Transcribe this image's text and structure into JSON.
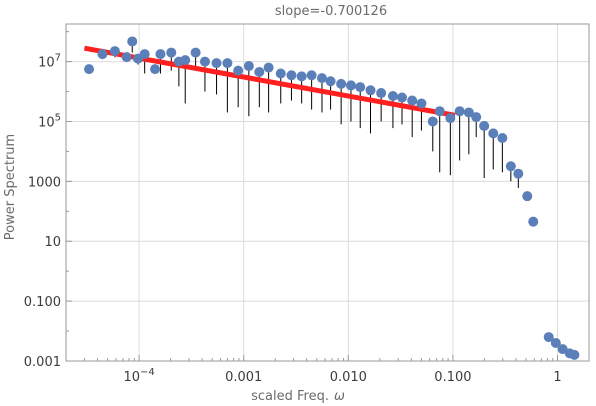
{
  "chart_data": {
    "type": "scatter",
    "title": "slope=-0.700126",
    "xlabel": "scaled Freq.",
    "xlabel_symbol": "ω",
    "ylabel": "Power Spectrum",
    "x_scale": "log",
    "y_scale": "log",
    "xlim": [
      2e-05,
      2.0
    ],
    "ylim": [
      0.001,
      180000000.0
    ],
    "grid": "major, light gray",
    "legend": "none",
    "x_ticks": [
      {
        "value": 0.0001,
        "base": "10",
        "exp": "−4"
      },
      {
        "value": 0.001,
        "label": "0.001"
      },
      {
        "value": 0.01,
        "label": "0.010"
      },
      {
        "value": 0.1,
        "label": "0.100"
      },
      {
        "value": 1,
        "label": "1"
      }
    ],
    "y_ticks": [
      {
        "value": 0.001,
        "label": "0.001"
      },
      {
        "value": 0.1,
        "label": "0.100"
      },
      {
        "value": 10,
        "label": "10"
      },
      {
        "value": 1000,
        "label": "1000"
      },
      {
        "value": 100000,
        "base": "10",
        "exp": "5"
      },
      {
        "value": 10000000,
        "base": "10",
        "exp": "7"
      }
    ],
    "colors": {
      "points": "#5b7fb8",
      "fit": "#ff2020",
      "errorbars": "#000000",
      "grid": "#dcdcdc",
      "frame": "#9a9a9a"
    },
    "series": [
      {
        "points": [
          {
            "x": 3.32e-05,
            "y": 5600000
          },
          {
            "x": 4.46e-05,
            "y": 17800000,
            "err_low": 12000000
          },
          {
            "x": 5.87e-05,
            "y": 22400000,
            "err_low": 14000000
          },
          {
            "x": 7.6e-05,
            "y": 14100000,
            "err_low": 10000000
          },
          {
            "x": 8.6e-05,
            "y": 47000000,
            "err_low": 20000000
          },
          {
            "x": 9.75e-05,
            "y": 12600000,
            "err_low": 8000000
          },
          {
            "x": 0.000113,
            "y": 17800000,
            "err_low": 4000000
          },
          {
            "x": 0.000142,
            "y": 5600000
          },
          {
            "x": 0.00016,
            "y": 17800000,
            "err_low": 4000000
          },
          {
            "x": 0.000203,
            "y": 20000000,
            "err_low": 5000000
          },
          {
            "x": 0.00024,
            "y": 10000000,
            "err_low": 1500000
          },
          {
            "x": 0.000276,
            "y": 11200000,
            "err_low": 400000
          },
          {
            "x": 0.000347,
            "y": 20000000,
            "err_low": 6000000
          },
          {
            "x": 0.000426,
            "y": 10000000,
            "err_low": 1000000
          },
          {
            "x": 0.00055,
            "y": 8900000,
            "err_low": 800000
          },
          {
            "x": 0.000698,
            "y": 8900000,
            "err_low": 200000
          },
          {
            "x": 0.000885,
            "y": 5000000,
            "err_low": 300000
          },
          {
            "x": 0.00112,
            "y": 7100000,
            "err_low": 150000
          },
          {
            "x": 0.00141,
            "y": 4500000,
            "err_low": 300000
          },
          {
            "x": 0.00173,
            "y": 6300000,
            "err_low": 200000
          },
          {
            "x": 0.00226,
            "y": 4000000,
            "err_low": 400000
          },
          {
            "x": 0.00286,
            "y": 3500000,
            "err_low": 500000
          },
          {
            "x": 0.00358,
            "y": 3200000,
            "err_low": 400000
          },
          {
            "x": 0.00446,
            "y": 3500000,
            "err_low": 250000
          },
          {
            "x": 0.0056,
            "y": 2800000,
            "err_low": 200000
          },
          {
            "x": 0.00677,
            "y": 2200000,
            "err_low": 250000
          },
          {
            "x": 0.00854,
            "y": 1800000,
            "err_low": 80000
          },
          {
            "x": 0.0106,
            "y": 1600000,
            "err_low": 100000
          },
          {
            "x": 0.013,
            "y": 1400000,
            "err_low": 60000
          },
          {
            "x": 0.0163,
            "y": 1100000,
            "err_low": 40000
          },
          {
            "x": 0.0206,
            "y": 890000,
            "err_low": 100000
          },
          {
            "x": 0.0267,
            "y": 710000,
            "err_low": 60000
          },
          {
            "x": 0.0326,
            "y": 630000,
            "err_low": 80000
          },
          {
            "x": 0.0408,
            "y": 500000,
            "err_low": 30000
          },
          {
            "x": 0.05,
            "y": 400000,
            "err_low": 50000
          },
          {
            "x": 0.0642,
            "y": 100000,
            "err_low": 10000
          },
          {
            "x": 0.0748,
            "y": 220000,
            "err_low": 2000
          },
          {
            "x": 0.0945,
            "y": 130000,
            "err_low": 1600
          },
          {
            "x": 0.116,
            "y": 220000,
            "err_low": 5000
          },
          {
            "x": 0.142,
            "y": 200000,
            "err_low": 8000
          },
          {
            "x": 0.167,
            "y": 140000,
            "err_low": 30000
          },
          {
            "x": 0.199,
            "y": 71000,
            "err_low": 1300
          },
          {
            "x": 0.243,
            "y": 40000,
            "err_low": 2500
          },
          {
            "x": 0.297,
            "y": 28000,
            "err_low": 2000
          },
          {
            "x": 0.358,
            "y": 3200,
            "err_low": 1000
          },
          {
            "x": 0.422,
            "y": 1800,
            "err_low": 600
          },
          {
            "x": 0.514,
            "y": 320
          },
          {
            "x": 0.586,
            "y": 45
          },
          {
            "x": 0.824,
            "y": 0.0063
          },
          {
            "x": 0.964,
            "y": 0.004
          },
          {
            "x": 1.12,
            "y": 0.0025
          },
          {
            "x": 1.31,
            "y": 0.0018
          },
          {
            "x": 1.45,
            "y": 0.0016
          }
        ]
      }
    ],
    "fit": {
      "x_start": 3e-05,
      "x_end": 0.105,
      "y_start": 28000000,
      "y_end": 160000
    }
  }
}
